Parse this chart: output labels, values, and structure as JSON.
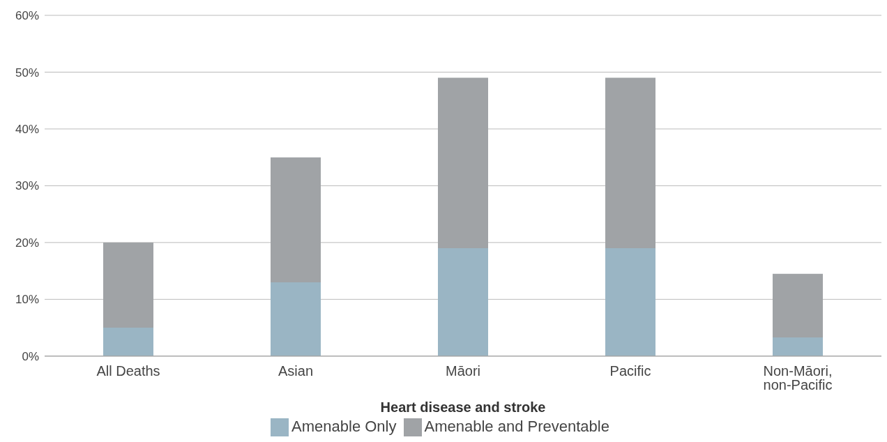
{
  "chart_data": {
    "type": "bar",
    "stacked": true,
    "xlabel": "Heart disease and stroke",
    "categories": [
      "All Deaths",
      "Asian",
      "Māori",
      "Pacific",
      "Non-Māori, non-Pacific"
    ],
    "series": [
      {
        "name": "Amenable Only",
        "color": "#9ab5c4",
        "values": [
          5,
          13,
          19,
          19,
          3.3
        ]
      },
      {
        "name": "Amenable and Preventable",
        "color": "#a0a3a6",
        "values": [
          15,
          22,
          30,
          30,
          11.2
        ]
      }
    ],
    "ylim": [
      0,
      60
    ],
    "yticks": [
      {
        "value": 0,
        "label": "0%"
      },
      {
        "value": 10,
        "label": "10%"
      },
      {
        "value": 20,
        "label": "20%"
      },
      {
        "value": 30,
        "label": "30%"
      },
      {
        "value": 40,
        "label": "40%"
      },
      {
        "value": 50,
        "label": "50%"
      },
      {
        "value": 60,
        "label": "60%"
      }
    ],
    "grid": "y",
    "legend": "bottom"
  }
}
